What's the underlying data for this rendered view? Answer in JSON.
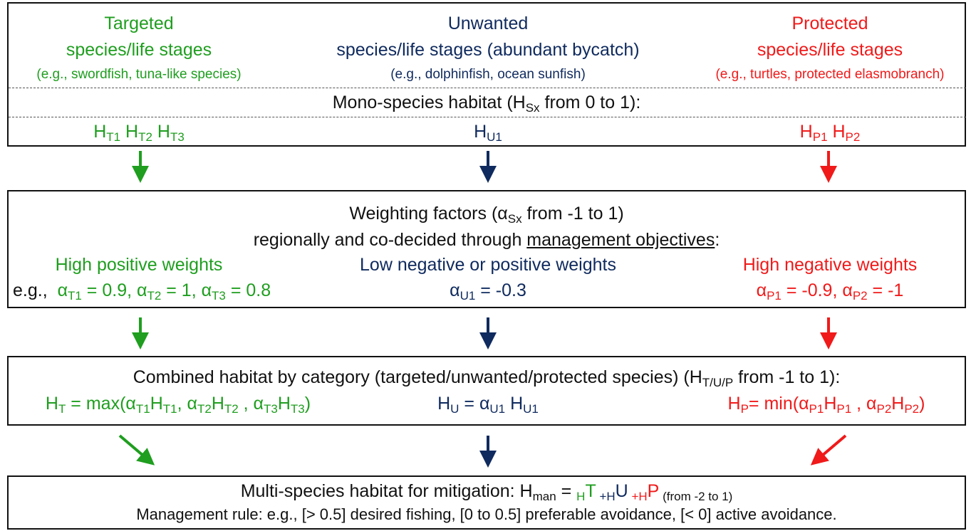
{
  "top_box": {
    "columns": [
      {
        "title": "Targeted",
        "subtitle": "species/life stages",
        "example": "(e.g., swordfish, tuna-like species)"
      },
      {
        "title": "Unwanted",
        "subtitle": "species/life stages (abundant bycatch)",
        "example": "(e.g., dolphinfish, ocean sunfish)"
      },
      {
        "title": "Protected",
        "subtitle": "species/life stages",
        "example": "(e.g., turtles, protected elasmobranch)"
      }
    ],
    "habitat_label": [
      "Mono-species habitat (H",
      "Sx",
      " from 0 to 1):"
    ],
    "habitats": [
      [
        "H",
        "T1",
        " H",
        "T2",
        " H",
        "T3"
      ],
      [
        "H",
        "U1"
      ],
      [
        "H",
        "P1",
        " H",
        "P2"
      ]
    ]
  },
  "weighting_box": {
    "heading": [
      "Weighting factors (α",
      "Sx",
      " from -1 to 1)"
    ],
    "line2": [
      "regionally and co-decided through ",
      "management objectives",
      ":"
    ],
    "columns": [
      {
        "title": "High positive weights",
        "prefix": "e.g.,",
        "weights": [
          "α",
          "T1",
          " = 0.9, α",
          "T2",
          " = 1, α",
          "T3",
          " = 0.8"
        ]
      },
      {
        "title": "Low negative or positive weights",
        "weights": [
          "α",
          "U1",
          " = -0.3"
        ]
      },
      {
        "title": "High negative weights",
        "weights": [
          "α",
          "P1",
          " = -0.9, α",
          "P2",
          " = -1"
        ]
      }
    ]
  },
  "combined_box": {
    "heading": [
      "Combined habitat by category (targeted/unwanted/protected species) (H",
      "T/U/P",
      " from -1 to 1):"
    ],
    "formulas": [
      [
        "H",
        "T",
        " = max(α",
        "T1",
        "H",
        "T1",
        ", α",
        "T2",
        "H",
        "T2",
        " , α",
        "T3",
        "H",
        "T3",
        ")"
      ],
      [
        "H",
        "U",
        " = α",
        "U1",
        " H",
        "U1"
      ],
      [
        "H",
        "P",
        "= min(α",
        "P1",
        "H",
        "P1",
        " , α",
        "P2",
        "H",
        "P2",
        ")"
      ]
    ]
  },
  "multi_box": {
    "heading": [
      "Multi-species habitat for mitigation: H",
      "man",
      " = ",
      "H",
      "T",
      " +H",
      "U",
      " +H",
      "P",
      " (from -2 to 1)"
    ],
    "rule": "Management rule: e.g., [> 0.5] desired fishing, [0 to 0.5] preferable avoidance, [< 0] active avoidance."
  }
}
